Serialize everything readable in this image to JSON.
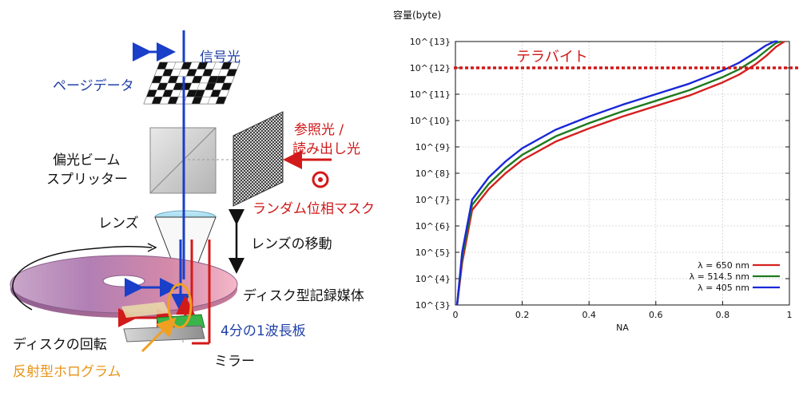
{
  "diagram": {
    "labels": {
      "signal_light": "信号光",
      "page_data": "ページデータ",
      "reference_light_line1": "参照光 /",
      "reference_light_line2": "読み出し光",
      "pbs_line1": "偏光ビーム",
      "pbs_line2": "スプリッター",
      "random_phase_mask": "ランダム位相マスク",
      "lens": "レンズ",
      "lens_movement": "レンズの移動",
      "disc_medium": "ディスク型記録媒体",
      "quarter_wave_plate": "4分の1波長板",
      "disc_rotation": "ディスクの回転",
      "reflective_hologram": "反射型ホログラム",
      "mirror": "ミラー"
    },
    "colors": {
      "blue": "#1a3fc8",
      "red": "#d21a1a",
      "orange": "#f0a020",
      "green": "#39b54a"
    }
  },
  "chart_data": {
    "type": "line",
    "ylabel": "容量(byte)",
    "xlabel": "NA",
    "xlim": [
      0,
      1
    ],
    "ylim": [
      3,
      13
    ],
    "y_scale": "log10",
    "x_ticks": [
      "0",
      "0.2",
      "0.4",
      "0.6",
      "0.8",
      "1"
    ],
    "y_ticks": [
      "10^{3}",
      "10^{4}",
      "10^{5}",
      "10^{6}",
      "10^{7}",
      "10^{8}",
      "10^{9}",
      "10^{10}",
      "10^{11}",
      "10^{12}",
      "10^{13}"
    ],
    "grid": true,
    "legend_position": "bottom-right",
    "annotation": {
      "text": "テラバイト",
      "y": 12,
      "color": "#d01818",
      "style": "dotted"
    },
    "series": [
      {
        "name": "λ = 650 nm",
        "color": "#d62020",
        "x": [
          0.005,
          0.02,
          0.05,
          0.1,
          0.15,
          0.2,
          0.3,
          0.4,
          0.5,
          0.6,
          0.7,
          0.8,
          0.85,
          0.9,
          0.93,
          0.96,
          0.985
        ],
        "y": [
          3.0,
          4.6,
          6.6,
          7.4,
          8.0,
          8.5,
          9.2,
          9.7,
          10.15,
          10.55,
          10.95,
          11.45,
          11.75,
          12.15,
          12.45,
          12.8,
          13.0
        ]
      },
      {
        "name": "λ = 514.5 nm",
        "color": "#1e7a1e",
        "x": [
          0.005,
          0.02,
          0.05,
          0.1,
          0.15,
          0.2,
          0.3,
          0.4,
          0.5,
          0.6,
          0.7,
          0.8,
          0.85,
          0.9,
          0.93,
          0.96,
          0.975
        ],
        "y": [
          3.0,
          4.8,
          6.8,
          7.6,
          8.2,
          8.7,
          9.4,
          9.9,
          10.35,
          10.75,
          11.15,
          11.65,
          11.95,
          12.35,
          12.65,
          12.95,
          13.0
        ]
      },
      {
        "name": "λ = 405 nm",
        "color": "#1a28d8",
        "x": [
          0.005,
          0.02,
          0.05,
          0.1,
          0.15,
          0.2,
          0.3,
          0.4,
          0.5,
          0.6,
          0.7,
          0.8,
          0.85,
          0.9,
          0.93,
          0.955,
          0.965
        ],
        "y": [
          3.0,
          5.0,
          7.0,
          7.85,
          8.45,
          8.95,
          9.65,
          10.15,
          10.6,
          11.0,
          11.4,
          11.9,
          12.2,
          12.6,
          12.85,
          13.0,
          13.0
        ]
      }
    ]
  }
}
